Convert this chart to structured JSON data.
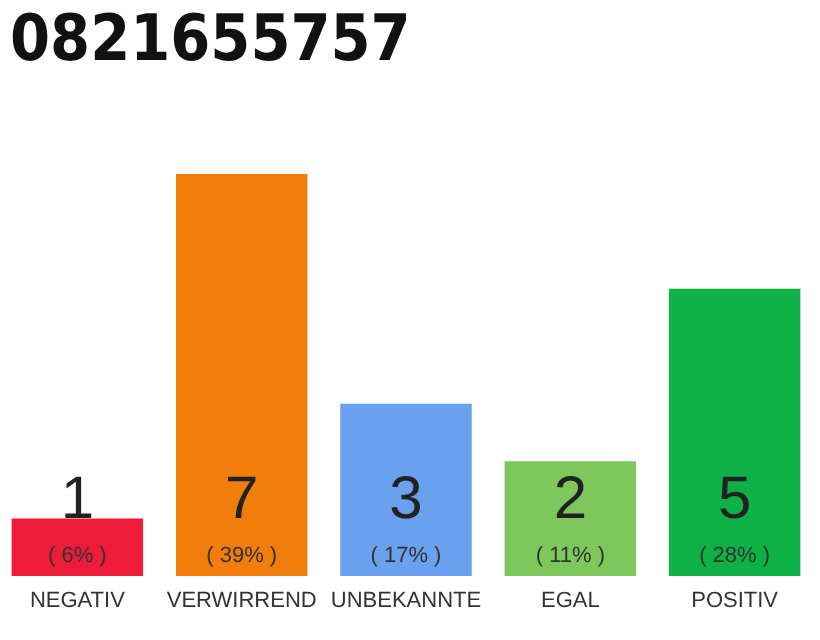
{
  "chart_data": {
    "type": "bar",
    "title": "0821655757",
    "categories": [
      "NEGATIV",
      "VERWIRREND",
      "UNBEKANNTE",
      "EGAL",
      "POSITIV"
    ],
    "values": [
      1,
      7,
      3,
      2,
      5
    ],
    "colors": [
      "#ee1c3a",
      "#f07d0c",
      "#6aa1ee",
      "#7dc75b",
      "#0db145"
    ],
    "data_labels": true,
    "tick_labels": "x",
    "annotations": [
      "( 6% )",
      "( 39% )",
      "( 17% )",
      "( 11% )",
      "( 28% )"
    ]
  }
}
